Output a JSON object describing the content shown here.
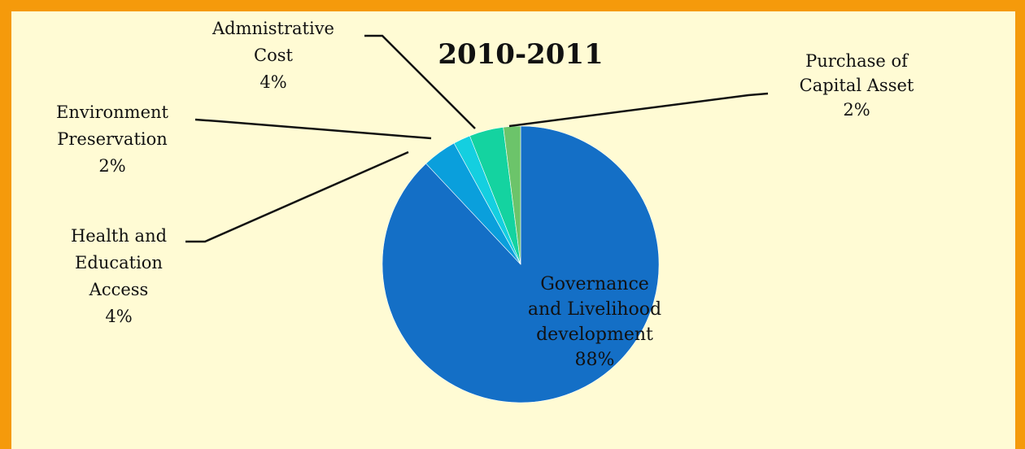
{
  "chart_data": {
    "type": "pie",
    "title": "2010-2011",
    "slices": [
      {
        "label_lines": [
          "Governance",
          "and Livelihood",
          "development"
        ],
        "pct_text": "88%",
        "value": 88,
        "color": "#146fc6"
      },
      {
        "label_lines": [
          "Health and",
          "Education",
          "Access"
        ],
        "pct_text": "4%",
        "value": 4,
        "color": "#0a9fdc"
      },
      {
        "label_lines": [
          "Environment",
          "Preservation"
        ],
        "pct_text": "2%",
        "value": 2,
        "color": "#14cfe0"
      },
      {
        "label_lines": [
          "Admnistrative",
          "Cost"
        ],
        "pct_text": "4%",
        "value": 4,
        "color": "#14d3a0"
      },
      {
        "label_lines": [
          "Purchase of",
          "Capital  Asset"
        ],
        "pct_text": "2%",
        "value": 2,
        "color": "#6cc46a"
      }
    ],
    "legend": "none",
    "label_placement": "outside with leader lines; largest slice labeled inside"
  }
}
